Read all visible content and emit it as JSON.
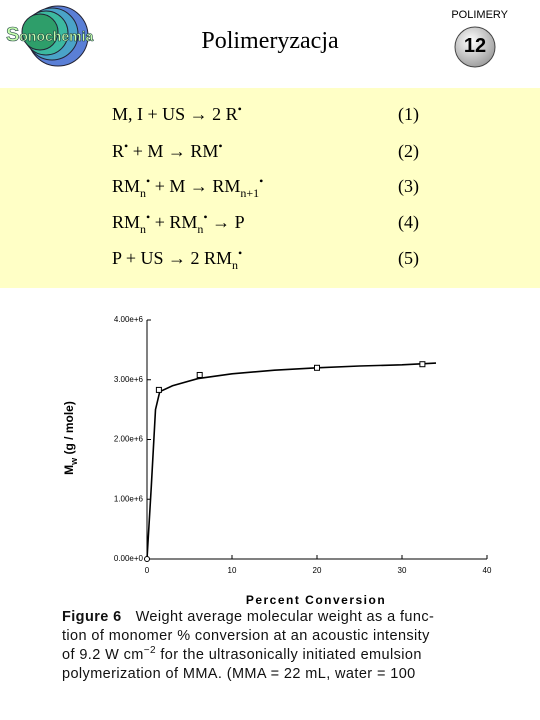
{
  "header": {
    "logo": "Sonochemia",
    "section": "POLIMERY",
    "title": "Polimeryzacja",
    "slide_number": "12"
  },
  "equations": [
    {
      "parts": [
        {
          "text": "M, I + US → 2 R",
          "pos": "base"
        },
        {
          "text": "•",
          "pos": "sup"
        }
      ],
      "number": "(1)"
    },
    {
      "parts": [
        {
          "text": "R",
          "pos": "base"
        },
        {
          "text": "•",
          "pos": "sup"
        },
        {
          "text": " + M → RM",
          "pos": "base"
        },
        {
          "text": "•",
          "pos": "sup"
        }
      ],
      "number": "(2)"
    },
    {
      "parts": [
        {
          "text": "RM",
          "pos": "base"
        },
        {
          "text": "n",
          "pos": "sub"
        },
        {
          "text": "•",
          "pos": "sup"
        },
        {
          "text": " + M → RM",
          "pos": "base"
        },
        {
          "text": "n+1",
          "pos": "sub"
        },
        {
          "text": "•",
          "pos": "sup"
        }
      ],
      "number": "(3)"
    },
    {
      "parts": [
        {
          "text": "RM",
          "pos": "base"
        },
        {
          "text": "n",
          "pos": "sub"
        },
        {
          "text": "•",
          "pos": "sup"
        },
        {
          "text": " + RM",
          "pos": "base"
        },
        {
          "text": "n",
          "pos": "sub"
        },
        {
          "text": "•",
          "pos": "sup"
        },
        {
          "text": " → P",
          "pos": "base"
        }
      ],
      "number": "(4)"
    },
    {
      "parts": [
        {
          "text": "P + US → 2 RM",
          "pos": "base"
        },
        {
          "text": "n",
          "pos": "sub"
        },
        {
          "text": "•",
          "pos": "sup"
        }
      ],
      "number": "(5)"
    }
  ],
  "chart_data": {
    "type": "scatter",
    "xlabel": "Percent Conversion",
    "ylabel": [
      {
        "text": "M",
        "pos": "base"
      },
      {
        "text": "w",
        "pos": "sub"
      },
      {
        "text": " (g / mole)",
        "pos": "base"
      }
    ],
    "xlim": [
      0,
      40
    ],
    "xticks": [
      0,
      10,
      20,
      30,
      40
    ],
    "ylim": [
      0,
      4000000
    ],
    "yticks": [
      {
        "value": 0,
        "label": "0.00e+0"
      },
      {
        "value": 1000000,
        "label": "1.00e+6"
      },
      {
        "value": 2000000,
        "label": "2.00e+6"
      },
      {
        "value": 3000000,
        "label": "3.00e+6"
      },
      {
        "value": 4000000,
        "label": "4.00e+6"
      }
    ],
    "color": "#000000",
    "series": [
      {
        "mode": "line",
        "x": [
          0,
          0.5,
          1,
          1.5,
          3,
          6,
          10,
          15,
          20,
          25,
          30,
          34
        ],
        "values": [
          0,
          1200000,
          2500000,
          2800000,
          2900000,
          3020000,
          3100000,
          3160000,
          3200000,
          3230000,
          3250000,
          3280000
        ]
      },
      {
        "mode": "markers",
        "x": [
          0,
          1.4,
          6.2,
          20,
          32.4
        ],
        "values": [
          0,
          2830000,
          3080000,
          3200000,
          3260000
        ],
        "marker": [
          "circle",
          "square",
          "square",
          "square",
          "square"
        ]
      }
    ]
  },
  "caption": {
    "label": "Figure 6",
    "lines": [
      [
        {
          "text": "Weight average molecular weight as a func-",
          "pos": "base"
        }
      ],
      [
        {
          "text": "tion of monomer % conversion at an acoustic intensity",
          "pos": "base"
        }
      ],
      [
        {
          "text": "of 9.2 W cm",
          "pos": "base"
        },
        {
          "text": "−2",
          "pos": "sup"
        },
        {
          "text": " for the ultrasonically initiated emulsion",
          "pos": "base"
        }
      ],
      [
        {
          "text": "polymerization of MMA. (MMA = 22 mL, water = 100",
          "pos": "base"
        }
      ]
    ]
  }
}
